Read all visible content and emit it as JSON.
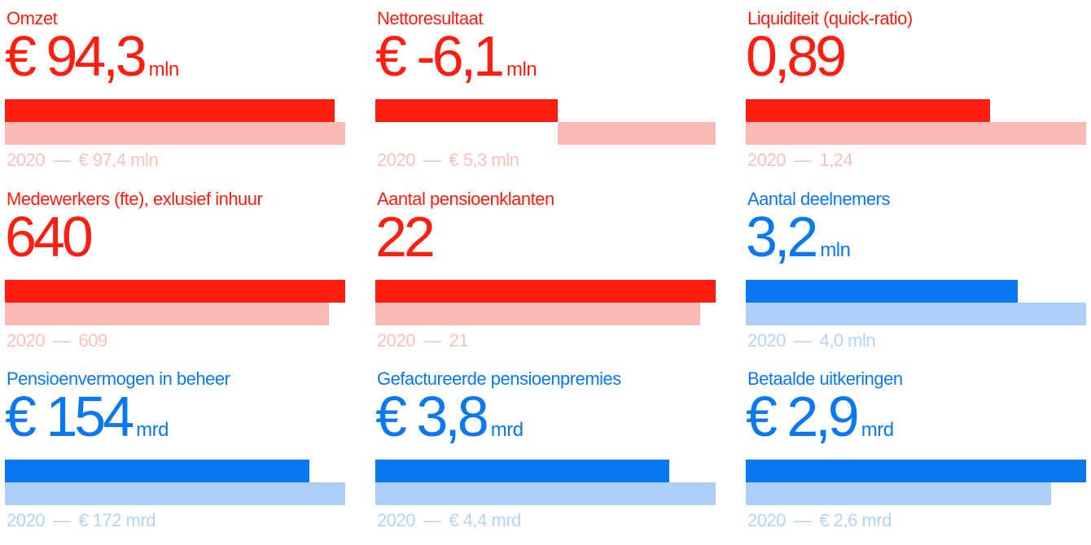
{
  "chart_data": [
    {
      "type": "bar",
      "title": "Omzet",
      "current": {
        "display": "€ 94,3",
        "unit": "mln",
        "value": 94.3
      },
      "previous": {
        "year": "2020",
        "display": "€ 97,4 mln",
        "value": 97.4
      },
      "color_current": "#ff1e0f",
      "color_previous": "#f9b9b5"
    },
    {
      "type": "bar",
      "title": "Nettoresultaat",
      "current": {
        "display": "€ -6,1",
        "unit": "mln",
        "value": -6.1
      },
      "previous": {
        "year": "2020",
        "display": "€ 5,3 mln",
        "value": 5.3
      },
      "color_current": "#ff1e0f",
      "color_previous": "#f9b9b5"
    },
    {
      "type": "bar",
      "title": "Liquiditeit (quick-ratio)",
      "current": {
        "display": "0,89",
        "unit": "",
        "value": 0.89
      },
      "previous": {
        "year": "2020",
        "display": "1,24",
        "value": 1.24
      },
      "color_current": "#ff1e0f",
      "color_previous": "#f9b9b5"
    },
    {
      "type": "bar",
      "title": "Medewerkers (fte), exlusief inhuur",
      "current": {
        "display": "640",
        "unit": "",
        "value": 640
      },
      "previous": {
        "year": "2020",
        "display": "609",
        "value": 609
      },
      "color_current": "#ff1e0f",
      "color_previous": "#f9b9b5"
    },
    {
      "type": "bar",
      "title": "Aantal pensioenklanten",
      "current": {
        "display": "22",
        "unit": "",
        "value": 22
      },
      "previous": {
        "year": "2020",
        "display": "21",
        "value": 21
      },
      "color_current": "#ff1e0f",
      "color_previous": "#f9b9b5"
    },
    {
      "type": "bar",
      "title": "Aantal deelnemers",
      "current": {
        "display": "3,2",
        "unit": "mln",
        "value": 3.2
      },
      "previous": {
        "year": "2020",
        "display": "4,0 mln",
        "value": 4.0
      },
      "color_current": "#0a78f0",
      "color_previous": "#acd0f9"
    },
    {
      "type": "bar",
      "title": "Pensioenvermogen in beheer",
      "current": {
        "display": "€ 154",
        "unit": "mrd",
        "value": 154
      },
      "previous": {
        "year": "2020",
        "display": "€ 172 mrd",
        "value": 172
      },
      "color_current": "#0a78f0",
      "color_previous": "#acd0f9"
    },
    {
      "type": "bar",
      "title": "Gefactureerde pensioenpremies",
      "current": {
        "display": "€ 3,8",
        "unit": "mrd",
        "value": 3.8
      },
      "previous": {
        "year": "2020",
        "display": "€ 4,4 mrd",
        "value": 4.4
      },
      "color_current": "#0a78f0",
      "color_previous": "#acd0f9"
    },
    {
      "type": "bar",
      "title": "Betaalde uitkeringen",
      "current": {
        "display": "€ 2,9",
        "unit": "mrd",
        "value": 2.9
      },
      "previous": {
        "year": "2020",
        "display": "€ 2,6 mrd",
        "value": 2.6
      },
      "color_current": "#0a78f0",
      "color_previous": "#acd0f9"
    }
  ]
}
